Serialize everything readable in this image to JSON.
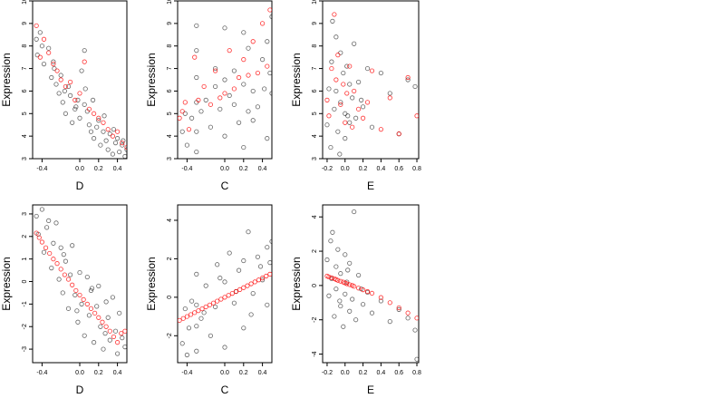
{
  "figure": {
    "background": "#ffffff",
    "point_colors": {
      "observed": "#000000",
      "fitted": "#ff0000"
    }
  },
  "chart_data": [
    {
      "type": "scatter",
      "xlabel": "D",
      "ylabel": "Expression",
      "xlim": [
        -0.5,
        0.5
      ],
      "ylim": [
        3,
        10
      ],
      "xticks": [
        "-0.4",
        "0.0",
        "0.2",
        "0.4"
      ],
      "xtick_values": [
        -0.4,
        0.0,
        0.2,
        0.4
      ],
      "yticks": [
        "3",
        "4",
        "5",
        "6",
        "7",
        "8",
        "9",
        "10"
      ],
      "ytick_values": [
        3,
        4,
        5,
        6,
        7,
        8,
        9,
        10
      ],
      "series": [
        {
          "role": "observed",
          "color": "#000000",
          "x": [
            -0.46,
            -0.45,
            -0.42,
            -0.38,
            -0.33,
            -0.3,
            -0.27,
            -0.25,
            -0.22,
            -0.2,
            -0.18,
            -0.15,
            -0.12,
            -0.1,
            -0.08,
            -0.05,
            -0.02,
            0.0,
            0.02,
            0.05,
            0.05,
            0.08,
            0.1,
            0.12,
            0.15,
            0.18,
            0.2,
            0.22,
            0.25,
            0.28,
            0.3,
            0.32,
            0.35,
            0.38,
            0.4,
            0.42,
            0.45,
            0.48,
            0.5,
            -0.4,
            -0.28,
            -0.16,
            -0.04,
            0.06,
            0.14,
            0.26,
            0.36,
            0.46
          ],
          "y": [
            8.3,
            7.6,
            8.6,
            7.2,
            7.9,
            6.6,
            7.0,
            6.3,
            5.9,
            6.7,
            5.5,
            5.0,
            6.2,
            5.8,
            4.6,
            5.2,
            5.6,
            4.8,
            6.9,
            7.8,
            5.4,
            5.1,
            4.5,
            4.2,
            3.9,
            4.4,
            4.7,
            3.6,
            4.2,
            3.8,
            3.4,
            4.1,
            3.2,
            3.7,
            3.9,
            3.3,
            3.6,
            3.1,
            3.4,
            8.0,
            7.3,
            6.0,
            5.3,
            6.1,
            5.6,
            4.9,
            4.3,
            3.8
          ]
        },
        {
          "role": "fitted",
          "color": "#ff0000",
          "x": [
            -0.46,
            -0.42,
            -0.38,
            -0.33,
            -0.28,
            -0.24,
            -0.2,
            -0.15,
            -0.1,
            -0.05,
            0.0,
            0.05,
            0.1,
            0.15,
            0.2,
            0.25,
            0.3,
            0.35,
            0.4,
            0.45,
            0.5
          ],
          "y": [
            8.9,
            7.5,
            8.3,
            7.7,
            7.2,
            6.9,
            6.5,
            6.2,
            6.4,
            5.6,
            5.9,
            7.3,
            5.2,
            5.0,
            4.8,
            4.6,
            4.3,
            4.0,
            4.2,
            3.7,
            3.5
          ]
        }
      ]
    },
    {
      "type": "scatter",
      "xlabel": "C",
      "ylabel": "Expression",
      "xlim": [
        -0.5,
        0.5
      ],
      "ylim": [
        3,
        10
      ],
      "xticks": [
        "-0.4",
        "0.0",
        "0.2",
        "0.4"
      ],
      "xtick_values": [
        -0.4,
        0.0,
        0.2,
        0.4
      ],
      "yticks": [
        "3",
        "4",
        "5",
        "6",
        "7",
        "8",
        "9",
        "10"
      ],
      "ytick_values": [
        3,
        4,
        5,
        6,
        7,
        8,
        9,
        10
      ],
      "series": [
        {
          "role": "observed",
          "color": "#000000",
          "x": [
            -0.45,
            -0.42,
            -0.4,
            -0.35,
            -0.3,
            -0.3,
            -0.3,
            -0.3,
            -0.3,
            -0.3,
            -0.2,
            -0.15,
            -0.1,
            -0.05,
            0.0,
            0.0,
            0.0,
            0.05,
            0.1,
            0.15,
            0.2,
            0.2,
            0.2,
            0.25,
            0.25,
            0.3,
            0.35,
            0.4,
            0.45,
            0.45,
            0.48,
            0.5,
            0.5,
            -0.25,
            -0.1,
            0.1,
            0.3,
            0.42
          ],
          "y": [
            4.2,
            5.0,
            3.6,
            4.8,
            3.3,
            4.2,
            5.5,
            6.6,
            7.8,
            8.9,
            5.6,
            4.4,
            6.2,
            5.2,
            4.0,
            6.5,
            8.8,
            5.8,
            6.9,
            4.6,
            3.5,
            6.3,
            8.6,
            5.1,
            7.9,
            6.0,
            5.3,
            7.4,
            3.9,
            8.2,
            6.8,
            5.9,
            9.3,
            5.1,
            7.0,
            5.4,
            4.7,
            6.1
          ]
        },
        {
          "role": "fitted",
          "color": "#ff0000",
          "x": [
            -0.48,
            -0.45,
            -0.42,
            -0.38,
            -0.32,
            -0.28,
            -0.22,
            -0.15,
            -0.1,
            -0.05,
            0.0,
            0.05,
            0.1,
            0.15,
            0.2,
            0.25,
            0.3,
            0.35,
            0.4,
            0.45,
            0.48
          ],
          "y": [
            4.8,
            5.1,
            5.5,
            4.3,
            7.5,
            5.6,
            6.2,
            5.4,
            6.9,
            5.7,
            5.9,
            7.8,
            6.1,
            6.6,
            7.4,
            6.7,
            8.2,
            6.8,
            9.0,
            7.1,
            9.6
          ]
        }
      ]
    },
    {
      "type": "scatter",
      "xlabel": "E",
      "ylabel": "Expression",
      "xlim": [
        -0.25,
        0.82
      ],
      "ylim": [
        3,
        10
      ],
      "xticks": [
        "-0.2",
        "0.0",
        "0.2",
        "0.4",
        "0.6",
        "0.8"
      ],
      "xtick_values": [
        -0.2,
        0.0,
        0.2,
        0.4,
        0.6,
        0.8
      ],
      "yticks": [
        "3",
        "4",
        "5",
        "6",
        "7",
        "8",
        "9",
        "10"
      ],
      "ytick_values": [
        3,
        4,
        5,
        6,
        7,
        8,
        9,
        10
      ],
      "series": [
        {
          "role": "observed",
          "color": "#000000",
          "x": [
            -0.2,
            -0.18,
            -0.16,
            -0.15,
            -0.12,
            -0.1,
            -0.1,
            -0.08,
            -0.05,
            -0.05,
            -0.02,
            0.0,
            0.0,
            0.02,
            0.05,
            0.05,
            0.08,
            0.1,
            0.12,
            0.15,
            0.2,
            0.25,
            0.3,
            0.4,
            0.5,
            0.6,
            0.7,
            0.78,
            -0.14,
            -0.06,
            0.03,
            0.18
          ],
          "y": [
            4.5,
            6.1,
            3.5,
            7.3,
            5.2,
            8.4,
            6.0,
            4.2,
            7.7,
            5.5,
            6.8,
            3.9,
            5.0,
            7.1,
            4.6,
            6.3,
            5.7,
            8.1,
            4.8,
            6.4,
            5.3,
            7.0,
            4.4,
            6.8,
            5.9,
            4.1,
            6.5,
            6.2,
            9.1,
            3.2,
            4.9,
            5.6
          ]
        },
        {
          "role": "fitted",
          "color": "#ff0000",
          "x": [
            -0.2,
            -0.18,
            -0.15,
            -0.12,
            -0.1,
            -0.08,
            -0.05,
            -0.02,
            0.0,
            0.02,
            0.05,
            0.08,
            0.1,
            0.15,
            0.2,
            0.25,
            0.3,
            0.4,
            0.5,
            0.6,
            0.7,
            0.8
          ],
          "y": [
            5.6,
            4.9,
            7.0,
            9.4,
            6.5,
            7.6,
            5.4,
            6.3,
            4.6,
            5.9,
            7.1,
            4.4,
            6.0,
            5.2,
            4.8,
            5.5,
            6.9,
            4.3,
            5.7,
            4.1,
            6.6,
            4.9
          ]
        }
      ]
    },
    {
      "type": "scatter",
      "xlabel": "D",
      "ylabel": "Expression",
      "xlim": [
        -0.5,
        0.5
      ],
      "ylim": [
        -3.6,
        3.4
      ],
      "xticks": [
        "-0.4",
        "0.0",
        "0.2",
        "0.4"
      ],
      "xtick_values": [
        -0.4,
        0.0,
        0.2,
        0.4
      ],
      "yticks": [
        "-3",
        "-2",
        "-1",
        "0",
        "1",
        "2",
        "3"
      ],
      "ytick_values": [
        -3,
        -2,
        -1,
        0,
        1,
        2,
        3
      ],
      "series": [
        {
          "role": "observed",
          "color": "#000000",
          "x": [
            -0.46,
            -0.44,
            -0.4,
            -0.38,
            -0.35,
            -0.3,
            -0.28,
            -0.25,
            -0.22,
            -0.2,
            -0.18,
            -0.15,
            -0.12,
            -0.1,
            -0.08,
            -0.05,
            -0.02,
            0.0,
            0.02,
            0.05,
            0.08,
            0.1,
            0.12,
            0.15,
            0.18,
            0.2,
            0.22,
            0.25,
            0.28,
            0.3,
            0.32,
            0.35,
            0.38,
            0.4,
            0.42,
            0.45,
            0.48,
            -0.33,
            -0.17,
            -0.03,
            0.13,
            0.27
          ],
          "y": [
            2.9,
            2.1,
            3.2,
            1.3,
            2.4,
            0.6,
            1.7,
            2.6,
            0.1,
            1.5,
            -0.5,
            0.9,
            -1.2,
            0.3,
            1.6,
            -0.6,
            -1.8,
            0.4,
            -1.0,
            -2.4,
            0.2,
            -1.5,
            -0.4,
            -2.7,
            -1.1,
            -0.2,
            -2.0,
            -3.0,
            -0.9,
            -1.6,
            -2.6,
            -0.7,
            -2.2,
            -3.2,
            -1.4,
            -2.5,
            -2.9,
            2.7,
            1.2,
            -1.3,
            -0.3,
            -2.3
          ]
        },
        {
          "role": "fitted",
          "color": "#ff0000",
          "x": [
            -0.46,
            -0.43,
            -0.4,
            -0.36,
            -0.32,
            -0.28,
            -0.24,
            -0.2,
            -0.16,
            -0.12,
            -0.08,
            -0.04,
            0.0,
            0.04,
            0.08,
            0.12,
            0.16,
            0.2,
            0.24,
            0.28,
            0.32,
            0.36,
            0.4,
            0.44,
            0.48
          ],
          "y": [
            2.15,
            1.95,
            1.75,
            1.5,
            1.25,
            1.0,
            0.8,
            0.55,
            0.3,
            0.1,
            -0.15,
            -0.4,
            -0.6,
            -0.8,
            -1.0,
            -1.2,
            -1.4,
            -1.6,
            -1.8,
            -2.0,
            -2.2,
            -2.45,
            -2.7,
            -2.3,
            -2.2
          ]
        }
      ]
    },
    {
      "type": "scatter",
      "xlabel": "C",
      "ylabel": "Expression",
      "xlim": [
        -0.5,
        0.5
      ],
      "ylim": [
        -3.4,
        4.8
      ],
      "xticks": [
        "-0.4",
        "0.0",
        "0.2",
        "0.4"
      ],
      "xtick_values": [
        -0.4,
        0.0,
        0.2,
        0.4
      ],
      "yticks": [
        "-2",
        "0",
        "2",
        "4"
      ],
      "ytick_values": [
        -2,
        0,
        2,
        4
      ],
      "series": [
        {
          "role": "observed",
          "color": "#000000",
          "x": [
            -0.45,
            -0.42,
            -0.4,
            -0.38,
            -0.35,
            -0.3,
            -0.3,
            -0.3,
            -0.3,
            -0.25,
            -0.2,
            -0.15,
            -0.1,
            -0.05,
            0.0,
            0.0,
            0.05,
            0.1,
            0.15,
            0.2,
            0.2,
            0.25,
            0.3,
            0.35,
            0.4,
            0.45,
            0.45,
            0.48,
            0.5,
            -0.22,
            -0.08,
            0.12,
            0.28,
            0.38
          ],
          "y": [
            -2.4,
            -0.6,
            -3.0,
            -1.6,
            -0.2,
            -2.8,
            -1.5,
            -0.4,
            1.2,
            -1.1,
            0.6,
            -2.0,
            -0.5,
            1.0,
            -2.6,
            0.8,
            2.3,
            -0.3,
            1.4,
            -1.6,
            1.9,
            3.4,
            0.2,
            2.1,
            0.9,
            2.6,
            -0.4,
            1.8,
            2.9,
            -0.8,
            1.7,
            0.3,
            -0.9,
            1.6
          ]
        },
        {
          "role": "fitted",
          "color": "#ff0000",
          "x": [
            -0.48,
            -0.44,
            -0.4,
            -0.36,
            -0.32,
            -0.28,
            -0.24,
            -0.2,
            -0.16,
            -0.12,
            -0.08,
            -0.04,
            0.0,
            0.04,
            0.08,
            0.12,
            0.16,
            0.2,
            0.24,
            0.28,
            0.32,
            0.36,
            0.4,
            0.44,
            0.48
          ],
          "y": [
            -1.2,
            -1.1,
            -1.0,
            -0.9,
            -0.8,
            -0.7,
            -0.6,
            -0.5,
            -0.4,
            -0.3,
            -0.2,
            -0.1,
            0.0,
            0.1,
            0.2,
            0.3,
            0.4,
            0.5,
            0.6,
            0.7,
            0.8,
            0.9,
            1.0,
            1.1,
            1.2
          ]
        }
      ]
    },
    {
      "type": "scatter",
      "xlabel": "E",
      "ylabel": "Expression",
      "xlim": [
        -0.25,
        0.82
      ],
      "ylim": [
        -4.5,
        4.7
      ],
      "xticks": [
        "-0.2",
        "0.0",
        "0.2",
        "0.4",
        "0.6",
        "0.8"
      ],
      "xtick_values": [
        -0.2,
        0.0,
        0.2,
        0.4,
        0.6,
        0.8
      ],
      "yticks": [
        "-4",
        "-2",
        "0",
        "2",
        "4"
      ],
      "ytick_values": [
        -4,
        -2,
        0,
        2,
        4
      ],
      "series": [
        {
          "role": "observed",
          "color": "#000000",
          "x": [
            -0.2,
            -0.18,
            -0.16,
            -0.15,
            -0.12,
            -0.1,
            -0.1,
            -0.08,
            -0.05,
            -0.05,
            -0.02,
            0.0,
            0.0,
            0.02,
            0.05,
            0.05,
            0.08,
            0.1,
            0.12,
            0.15,
            0.2,
            0.25,
            0.3,
            0.4,
            0.5,
            0.6,
            0.7,
            0.78,
            -0.14,
            -0.06,
            0.03,
            0.18,
            0.8
          ],
          "y": [
            1.5,
            -0.6,
            2.6,
            0.4,
            -1.8,
            1.1,
            -0.2,
            2.1,
            -1.2,
            0.7,
            -2.4,
            1.8,
            -0.5,
            0.2,
            -1.5,
            1.3,
            -0.8,
            4.3,
            -2.0,
            0.6,
            -1.1,
            -0.4,
            -1.6,
            -0.9,
            -2.1,
            -1.4,
            -1.9,
            -2.6,
            3.1,
            -0.9,
            0.9,
            -0.2,
            -4.3
          ]
        },
        {
          "role": "fitted",
          "color": "#ff0000",
          "x": [
            -0.2,
            -0.18,
            -0.15,
            -0.12,
            -0.1,
            -0.08,
            -0.05,
            -0.02,
            0.0,
            0.02,
            0.05,
            0.08,
            0.1,
            0.15,
            0.2,
            0.25,
            0.3,
            0.4,
            0.5,
            0.6,
            0.7,
            0.8
          ],
          "y": [
            0.55,
            0.5,
            0.45,
            0.4,
            0.35,
            0.3,
            0.25,
            0.2,
            0.15,
            0.1,
            0.05,
            0.0,
            -0.05,
            -0.15,
            -0.25,
            -0.35,
            -0.45,
            -0.7,
            -1.0,
            -1.3,
            -1.6,
            -1.9
          ]
        }
      ]
    }
  ]
}
